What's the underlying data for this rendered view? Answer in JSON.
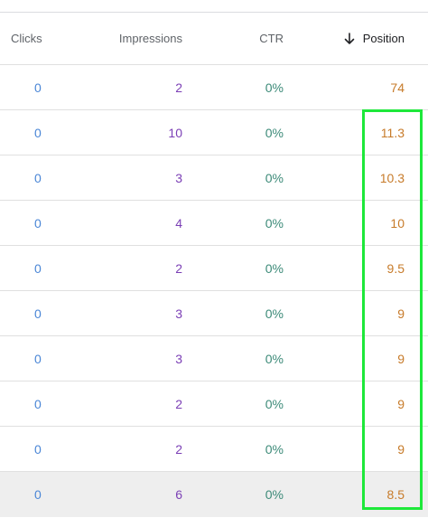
{
  "header": {
    "clicks_label": "Clicks",
    "impressions_label": "Impressions",
    "ctr_label": "CTR",
    "position_label": "Position",
    "sort_icon": "arrow-down-icon"
  },
  "rows": [
    {
      "clicks": "0",
      "impressions": "2",
      "ctr": "0%",
      "position": "74"
    },
    {
      "clicks": "0",
      "impressions": "10",
      "ctr": "0%",
      "position": "11.3"
    },
    {
      "clicks": "0",
      "impressions": "3",
      "ctr": "0%",
      "position": "10.3"
    },
    {
      "clicks": "0",
      "impressions": "4",
      "ctr": "0%",
      "position": "10"
    },
    {
      "clicks": "0",
      "impressions": "2",
      "ctr": "0%",
      "position": "9.5"
    },
    {
      "clicks": "0",
      "impressions": "3",
      "ctr": "0%",
      "position": "9"
    },
    {
      "clicks": "0",
      "impressions": "3",
      "ctr": "0%",
      "position": "9"
    },
    {
      "clicks": "0",
      "impressions": "2",
      "ctr": "0%",
      "position": "9"
    },
    {
      "clicks": "0",
      "impressions": "2",
      "ctr": "0%",
      "position": "9"
    },
    {
      "clicks": "0",
      "impressions": "6",
      "ctr": "0%",
      "position": "8.5"
    }
  ],
  "colors": {
    "clicks": "#4a86d6",
    "impressions": "#7b3fb5",
    "ctr": "#3c8a78",
    "position": "#c77b2a",
    "highlight_outline": "#1ee83a",
    "hovered_row": "#eeeeee"
  }
}
